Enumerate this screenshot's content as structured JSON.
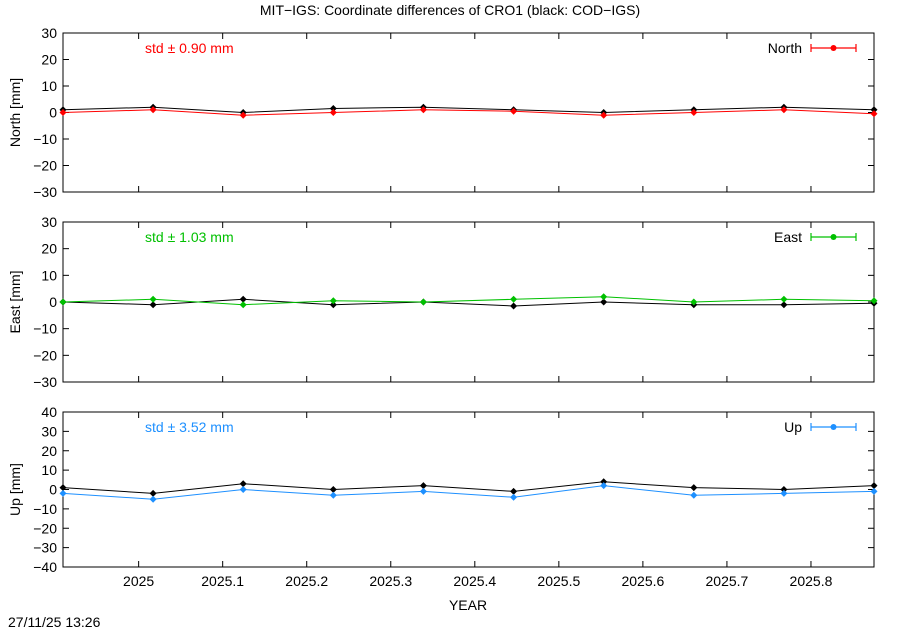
{
  "title": "MIT−IGS: Coordinate differences of CRO1 (black: COD−IGS)",
  "footer_timestamp": "27/11/25 13:26",
  "chart_data": [
    {
      "type": "line",
      "ylabel": "North [mm]",
      "legend_label": "North",
      "legend_position": "top-right",
      "std_label": "std ± 0.90 mm",
      "color": "#ff0000",
      "compare_color": "#000000",
      "xlim": [
        2024.91,
        2025.875
      ],
      "ylim": [
        -30,
        30
      ],
      "yticks": [
        -30,
        -20,
        -10,
        0,
        10,
        20,
        30
      ],
      "ytick_labels": [
        "−30",
        "−20",
        "−10",
        "0",
        "10",
        "20",
        "30"
      ],
      "series": [
        {
          "name": "North",
          "values": [
            0.0,
            1.0,
            -1.0,
            0.0,
            1.0,
            0.5,
            -1.0,
            0.0,
            1.0,
            -0.5
          ]
        },
        {
          "values": [
            1.0,
            2.0,
            0.0,
            1.5,
            2.0,
            1.0,
            0.0,
            1.0,
            2.0,
            1.0
          ]
        }
      ]
    },
    {
      "type": "line",
      "ylabel": "East [mm]",
      "legend_label": "East",
      "legend_position": "top-right",
      "std_label": "std ± 1.03 mm",
      "color": "#00c000",
      "compare_color": "#000000",
      "xlim": [
        2024.91,
        2025.875
      ],
      "ylim": [
        -30,
        30
      ],
      "yticks": [
        -30,
        -20,
        -10,
        0,
        10,
        20,
        30
      ],
      "ytick_labels": [
        "−30",
        "−20",
        "−10",
        "0",
        "10",
        "20",
        "30"
      ],
      "series": [
        {
          "name": "East",
          "values": [
            0.0,
            1.0,
            -1.0,
            0.5,
            0.0,
            1.0,
            2.0,
            0.0,
            1.0,
            0.5
          ]
        },
        {
          "values": [
            0.0,
            -1.0,
            1.0,
            -1.0,
            0.0,
            -1.5,
            0.0,
            -1.0,
            -1.0,
            -0.5
          ]
        }
      ]
    },
    {
      "type": "line",
      "ylabel": "Up [mm]",
      "legend_label": "Up",
      "legend_position": "top-right",
      "std_label": "std ± 3.52 mm",
      "color": "#1e90ff",
      "compare_color": "#000000",
      "xlim": [
        2024.91,
        2025.875
      ],
      "ylim": [
        -40,
        40
      ],
      "yticks": [
        -40,
        -30,
        -20,
        -10,
        0,
        10,
        20,
        30,
        40
      ],
      "ytick_labels": [
        "−40",
        "−30",
        "−20",
        "−10",
        "0",
        "10",
        "20",
        "30",
        "40"
      ],
      "series": [
        {
          "name": "Up",
          "values": [
            -2.0,
            -5.0,
            0.0,
            -3.0,
            -1.0,
            -4.0,
            2.0,
            -3.0,
            -2.0,
            -1.0
          ]
        },
        {
          "values": [
            1.0,
            -2.0,
            3.0,
            0.0,
            2.0,
            -1.0,
            4.0,
            1.0,
            0.0,
            2.0
          ]
        }
      ]
    }
  ],
  "x_axis": {
    "label": "YEAR",
    "ticks": [
      2025,
      2025.1,
      2025.2,
      2025.3,
      2025.4,
      2025.5,
      2025.6,
      2025.7,
      2025.8
    ],
    "tick_labels": [
      "2025",
      "2025.1",
      "2025.2",
      "2025.3",
      "2025.4",
      "2025.5",
      "2025.6",
      "2025.7",
      "2025.8"
    ]
  }
}
